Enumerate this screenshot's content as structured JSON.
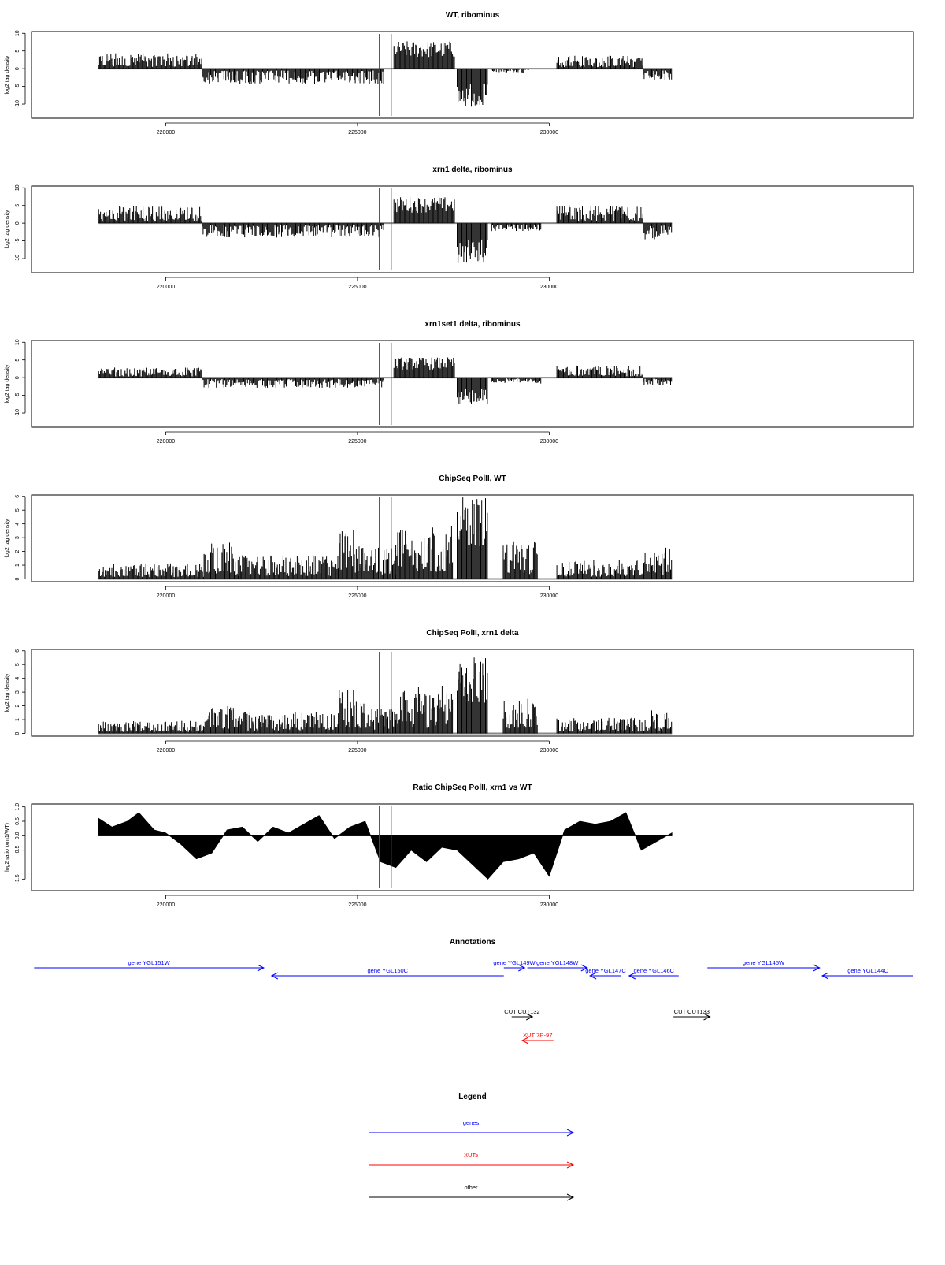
{
  "colors": {
    "data": "#000000",
    "marker": "#ff0000",
    "baseline": "#888888",
    "gene": "#0000ff",
    "xut": "#ff0000",
    "other": "#000000"
  },
  "chart_data": [
    {
      "type": "bar",
      "title": "WT, ribominus",
      "ylabel": "log2 tag density",
      "xlim": [
        216500,
        239500
      ],
      "ylim": [
        -14,
        10.5
      ],
      "yticks": [
        10,
        5,
        0,
        -5,
        -10
      ],
      "ytick_labels": [
        "10",
        "5",
        "0",
        "-5",
        "-10"
      ],
      "xticks": [
        220000,
        225000,
        230000
      ],
      "xtick_labels": [
        "220000",
        "225000",
        "230000"
      ],
      "markers": [
        225570,
        225880
      ],
      "grid": false,
      "segments": [
        {
          "start": 218250,
          "end": 220950,
          "level": 3.8
        },
        {
          "start": 220950,
          "end": 225700,
          "level": -3.8
        },
        {
          "start": 225950,
          "end": 227550,
          "level": 6.8
        },
        {
          "start": 227600,
          "end": 228400,
          "level": -9.5
        },
        {
          "start": 228500,
          "end": 229500,
          "level": -1.2
        },
        {
          "start": 230200,
          "end": 232450,
          "level": 3.2
        },
        {
          "start": 232450,
          "end": 233200,
          "level": -2.8
        }
      ]
    },
    {
      "type": "bar",
      "title": "xrn1 delta, ribominus",
      "ylabel": "log2 tag density",
      "xlim": [
        216500,
        239500
      ],
      "ylim": [
        -14,
        10.5
      ],
      "yticks": [
        10,
        5,
        0,
        -5,
        -10
      ],
      "ytick_labels": [
        "10",
        "5",
        "0",
        "-5",
        "-10"
      ],
      "xticks": [
        220000,
        225000,
        230000
      ],
      "xtick_labels": [
        "220000",
        "225000",
        "230000"
      ],
      "markers": [
        225570,
        225880
      ],
      "grid": false,
      "segments": [
        {
          "start": 218250,
          "end": 220950,
          "level": 4.2
        },
        {
          "start": 220950,
          "end": 225700,
          "level": -3.5
        },
        {
          "start": 225950,
          "end": 227550,
          "level": 6.5
        },
        {
          "start": 227600,
          "end": 228400,
          "level": -10
        },
        {
          "start": 228500,
          "end": 229800,
          "level": -2
        },
        {
          "start": 230200,
          "end": 232450,
          "level": 4.5
        },
        {
          "start": 232450,
          "end": 233200,
          "level": -4
        }
      ]
    },
    {
      "type": "bar",
      "title": "xrn1set1 delta, ribominus",
      "ylabel": "log2 tag density",
      "xlim": [
        216500,
        239500
      ],
      "ylim": [
        -14,
        10.5
      ],
      "yticks": [
        10,
        5,
        0,
        -5,
        -10
      ],
      "ytick_labels": [
        "10",
        "5",
        "0",
        "-5",
        "-10"
      ],
      "xticks": [
        220000,
        225000,
        230000
      ],
      "xtick_labels": [
        "220000",
        "225000",
        "230000"
      ],
      "markers": [
        225570,
        225880
      ],
      "grid": false,
      "segments": [
        {
          "start": 218250,
          "end": 220950,
          "level": 2.5
        },
        {
          "start": 220950,
          "end": 225700,
          "level": -2.5
        },
        {
          "start": 225950,
          "end": 227550,
          "level": 5
        },
        {
          "start": 227600,
          "end": 228400,
          "level": -6.5
        },
        {
          "start": 228500,
          "end": 229800,
          "level": -1.5
        },
        {
          "start": 230200,
          "end": 232450,
          "level": 3
        },
        {
          "start": 232450,
          "end": 233200,
          "level": -2
        }
      ]
    },
    {
      "type": "bar",
      "title": "ChipSeq PolII, WT",
      "ylabel": "log2 tag density",
      "xlim": [
        216500,
        239500
      ],
      "ylim": [
        -0.2,
        6.1
      ],
      "yticks": [
        0,
        1,
        2,
        3,
        4,
        5,
        6
      ],
      "ytick_labels": [
        "0",
        "1",
        "2",
        "3",
        "4",
        "5",
        "6"
      ],
      "xticks": [
        220000,
        225000,
        230000
      ],
      "xtick_labels": [
        "220000",
        "225000",
        "230000"
      ],
      "markers": [
        225570,
        225880
      ],
      "grid": false,
      "segments": [
        {
          "start": 218250,
          "end": 221000,
          "level": 1.0
        },
        {
          "start": 221000,
          "end": 221900,
          "level": 2.3
        },
        {
          "start": 221900,
          "end": 224500,
          "level": 1.5
        },
        {
          "start": 224500,
          "end": 225200,
          "level": 3.2
        },
        {
          "start": 225200,
          "end": 226000,
          "level": 2.0
        },
        {
          "start": 226000,
          "end": 227500,
          "level": 3.5
        },
        {
          "start": 227600,
          "end": 228400,
          "level": 5.2
        },
        {
          "start": 228800,
          "end": 229700,
          "level": 2.4
        },
        {
          "start": 230200,
          "end": 232500,
          "level": 1.2
        },
        {
          "start": 232500,
          "end": 233200,
          "level": 2.0
        }
      ]
    },
    {
      "type": "bar",
      "title": "ChipSeq PolII, xrn1 delta",
      "ylabel": "log2 tag density",
      "xlim": [
        216500,
        239500
      ],
      "ylim": [
        -0.2,
        6.1
      ],
      "yticks": [
        0,
        1,
        2,
        3,
        4,
        5,
        6
      ],
      "ytick_labels": [
        "0",
        "1",
        "2",
        "3",
        "4",
        "5",
        "6"
      ],
      "xticks": [
        220000,
        225000,
        230000
      ],
      "xtick_labels": [
        "220000",
        "225000",
        "230000"
      ],
      "markers": [
        225570,
        225880
      ],
      "grid": false,
      "segments": [
        {
          "start": 218250,
          "end": 221000,
          "level": 0.8
        },
        {
          "start": 221000,
          "end": 221900,
          "level": 1.8
        },
        {
          "start": 221900,
          "end": 224500,
          "level": 1.4
        },
        {
          "start": 224500,
          "end": 225200,
          "level": 2.8
        },
        {
          "start": 225200,
          "end": 226000,
          "level": 1.6
        },
        {
          "start": 226000,
          "end": 227500,
          "level": 3.0
        },
        {
          "start": 227600,
          "end": 228400,
          "level": 4.8
        },
        {
          "start": 228800,
          "end": 229700,
          "level": 2.2
        },
        {
          "start": 230200,
          "end": 232500,
          "level": 1.0
        },
        {
          "start": 232500,
          "end": 233200,
          "level": 1.5
        }
      ]
    },
    {
      "type": "area",
      "title": "Ratio ChipSeq PolII, xrn1 vs WT",
      "ylabel": "log2 ratio (xrn1/WT)",
      "xlim": [
        216500,
        239500
      ],
      "ylim": [
        -1.9,
        1.1
      ],
      "yticks": [
        1.0,
        0.5,
        0.0,
        -0.5,
        -1.5
      ],
      "ytick_labels": [
        "1.0",
        "0.5",
        "0.0",
        "-0.5",
        "-1.5"
      ],
      "xticks": [
        220000,
        225000,
        230000
      ],
      "xtick_labels": [
        "220000",
        "225000",
        "230000"
      ],
      "markers": [
        225570,
        225880
      ],
      "grid": false,
      "x": [
        218250,
        218600,
        219000,
        219300,
        219700,
        220000,
        220400,
        220800,
        221200,
        221600,
        222000,
        222400,
        222800,
        223200,
        223600,
        224000,
        224400,
        224800,
        225200,
        225600,
        226000,
        226400,
        226800,
        227200,
        227600,
        228000,
        228400,
        228800,
        229200,
        229600,
        230000,
        230400,
        230800,
        231200,
        231600,
        232000,
        232400,
        232800,
        233200
      ],
      "y": [
        0.6,
        0.3,
        0.5,
        0.8,
        0.2,
        0.1,
        -0.3,
        -0.8,
        -0.6,
        0.2,
        0.3,
        -0.2,
        0.3,
        0.1,
        0.4,
        0.7,
        -0.1,
        0.3,
        0.5,
        -0.9,
        -1.1,
        -0.5,
        -0.9,
        -0.4,
        -0.5,
        -1.0,
        -1.5,
        -0.9,
        -0.8,
        -0.6,
        -1.4,
        0.2,
        0.5,
        0.4,
        0.5,
        0.8,
        -0.5,
        -0.2,
        0.1
      ]
    }
  ],
  "annotations": {
    "title": "Annotations",
    "items": [
      {
        "label": "gene YGL151W",
        "kind": "gene",
        "start": 216550,
        "end": 220950,
        "direction": "forward",
        "row": 0
      },
      {
        "label": "gene YGL150C",
        "kind": "gene",
        "start": 221100,
        "end": 225550,
        "direction": "reverse",
        "row": 1
      },
      {
        "label": "gene YGL149W",
        "kind": "gene",
        "start": 225550,
        "end": 225950,
        "direction": "forward",
        "row": 0
      },
      {
        "label": "gene YGL148W",
        "kind": "gene",
        "start": 226000,
        "end": 227150,
        "direction": "forward",
        "row": 0
      },
      {
        "label": "gene YGL147C",
        "kind": "gene",
        "start": 227200,
        "end": 227800,
        "direction": "reverse",
        "row": 1
      },
      {
        "label": "gene YGL146C",
        "kind": "gene",
        "start": 227950,
        "end": 228900,
        "direction": "reverse",
        "row": 1
      },
      {
        "label": "gene YGL145W",
        "kind": "gene",
        "start": 229450,
        "end": 231600,
        "direction": "forward",
        "row": 0
      },
      {
        "label": "gene YGL144C",
        "kind": "gene",
        "start": 231650,
        "end": 233400,
        "direction": "reverse",
        "row": 1
      },
      {
        "label": "CUT CUT132",
        "kind": "other",
        "start": 225700,
        "end": 226100,
        "direction": "forward",
        "row": 2
      },
      {
        "label": "CUT CUT133",
        "kind": "other",
        "start": 228800,
        "end": 229500,
        "direction": "forward",
        "row": 2
      },
      {
        "label": "XUT 7R-97",
        "kind": "xut",
        "start": 225900,
        "end": 226500,
        "direction": "reverse",
        "row": 3
      }
    ]
  },
  "legend": {
    "title": "Legend",
    "items": [
      {
        "label": "genes",
        "kind": "gene"
      },
      {
        "label": "XUTs",
        "kind": "xut"
      },
      {
        "label": "other",
        "kind": "other"
      }
    ]
  }
}
